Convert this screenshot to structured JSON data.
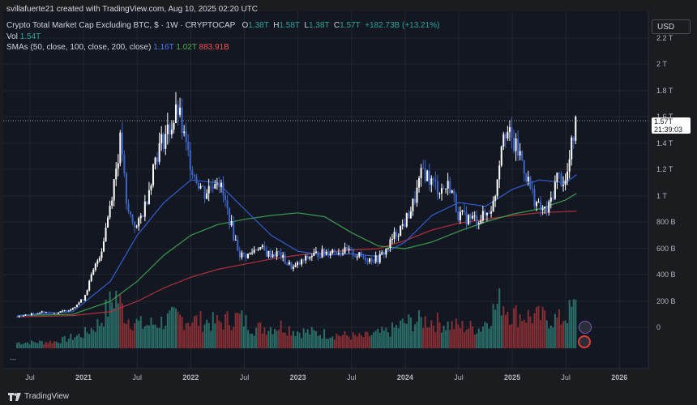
{
  "header": {
    "credit": "svillafuerte21 created with TradingView.com, Aug 10, 2025 02:20 UTC",
    "symbol": "Crypto Total Market Cap Excluding BTC, $ · 1W · CRYPTOCAP",
    "ohlc": {
      "o_label": "O",
      "open": "1.38T",
      "h_label": "H",
      "high": "1.58T",
      "l_label": "L",
      "low": "1.38T",
      "c_label": "C",
      "close": "1.57T",
      "change": "+182.73B (+13.21%)"
    },
    "vol_label": "Vol",
    "vol_value": "1.54T",
    "sma_label": "SMAs (50, close, 100, close, 200, close)",
    "sma50_value": "1.16T",
    "sma100_value": "1.02T",
    "sma200_value": "883.91B"
  },
  "axis": {
    "currency": "USD"
  },
  "price_tag": {
    "price": "1.57T",
    "countdown": "21:39:03"
  },
  "branding": {
    "logo_text": "TradingView"
  },
  "more_label": "...",
  "colors": {
    "background": "#1b1c20",
    "candle_up": "#ffffff",
    "candle_down": "#3d63c4",
    "sma50": "#2f5fd0",
    "sma100": "#3a9b4b",
    "sma200": "#b2303a",
    "vol_up": "#2f7d74",
    "vol_down": "#9a3236"
  },
  "chart_data": {
    "type": "candlestick",
    "interval": "1W",
    "y_scale": "log",
    "ylim": [
      "0",
      "2.3T"
    ],
    "y_ticks": [
      {
        "v": 2200000000000.0,
        "label": "2.2 T"
      },
      {
        "v": 2000000000000.0,
        "label": "2 T"
      },
      {
        "v": 1800000000000.0,
        "label": "1.8 T"
      },
      {
        "v": 1600000000000.0,
        "label": "1.6 T"
      },
      {
        "v": 1400000000000.0,
        "label": "1.4 T"
      },
      {
        "v": 1200000000000.0,
        "label": "1.2 T"
      },
      {
        "v": 1000000000000.0,
        "label": "1 T"
      },
      {
        "v": 800000000000.0,
        "label": "800 B"
      },
      {
        "v": 600000000000.0,
        "label": "600 B"
      },
      {
        "v": 400000000000.0,
        "label": "400 B"
      },
      {
        "v": 200000000000.0,
        "label": "200 B"
      },
      {
        "v": 0,
        "label": "0"
      }
    ],
    "x_ticks": [
      {
        "t": 2020.5,
        "label": "Jul"
      },
      {
        "t": 2021.0,
        "label": "2021"
      },
      {
        "t": 2021.5,
        "label": "Jul"
      },
      {
        "t": 2022.0,
        "label": "2022"
      },
      {
        "t": 2022.5,
        "label": "Jul"
      },
      {
        "t": 2023.0,
        "label": "2023"
      },
      {
        "t": 2023.5,
        "label": "Jul"
      },
      {
        "t": 2024.0,
        "label": "2024"
      },
      {
        "t": 2024.5,
        "label": "Jul"
      },
      {
        "t": 2025.0,
        "label": "2025"
      },
      {
        "t": 2025.5,
        "label": "Jul"
      },
      {
        "t": 2026.0,
        "label": "2026"
      }
    ],
    "last_price": 1570000000000.0,
    "price_path": [
      [
        2020.38,
        80000000000.0
      ],
      [
        2020.5,
        100000000000.0
      ],
      [
        2020.62,
        120000000000.0
      ],
      [
        2020.75,
        110000000000.0
      ],
      [
        2020.88,
        140000000000.0
      ],
      [
        2021.0,
        220000000000.0
      ],
      [
        2021.08,
        400000000000.0
      ],
      [
        2021.17,
        600000000000.0
      ],
      [
        2021.25,
        950000000000.0
      ],
      [
        2021.35,
        1450000000000.0
      ],
      [
        2021.4,
        900000000000.0
      ],
      [
        2021.5,
        750000000000.0
      ],
      [
        2021.58,
        950000000000.0
      ],
      [
        2021.67,
        1300000000000.0
      ],
      [
        2021.75,
        1450000000000.0
      ],
      [
        2021.83,
        1550000000000.0
      ],
      [
        2021.88,
        1650000000000.0
      ],
      [
        2021.96,
        1350000000000.0
      ],
      [
        2022.04,
        1150000000000.0
      ],
      [
        2022.13,
        1020000000000.0
      ],
      [
        2022.25,
        1150000000000.0
      ],
      [
        2022.33,
        920000000000.0
      ],
      [
        2022.4,
        700000000000.0
      ],
      [
        2022.46,
        550000000000.0
      ],
      [
        2022.54,
        550000000000.0
      ],
      [
        2022.63,
        620000000000.0
      ],
      [
        2022.71,
        560000000000.0
      ],
      [
        2022.83,
        560000000000.0
      ],
      [
        2022.88,
        500000000000.0
      ],
      [
        2022.96,
        450000000000.0
      ],
      [
        2023.04,
        500000000000.0
      ],
      [
        2023.13,
        550000000000.0
      ],
      [
        2023.25,
        570000000000.0
      ],
      [
        2023.33,
        590000000000.0
      ],
      [
        2023.42,
        580000000000.0
      ],
      [
        2023.5,
        570000000000.0
      ],
      [
        2023.58,
        540000000000.0
      ],
      [
        2023.67,
        520000000000.0
      ],
      [
        2023.75,
        520000000000.0
      ],
      [
        2023.83,
        600000000000.0
      ],
      [
        2023.92,
        720000000000.0
      ],
      [
        2024.0,
        800000000000.0
      ],
      [
        2024.08,
        950000000000.0
      ],
      [
        2024.17,
        1200000000000.0
      ],
      [
        2024.25,
        1100000000000.0
      ],
      [
        2024.33,
        1050000000000.0
      ],
      [
        2024.42,
        1080000000000.0
      ],
      [
        2024.5,
        850000000000.0
      ],
      [
        2024.58,
        830000000000.0
      ],
      [
        2024.67,
        820000000000.0
      ],
      [
        2024.75,
        850000000000.0
      ],
      [
        2024.83,
        950000000000.0
      ],
      [
        2024.92,
        1550000000000.0
      ],
      [
        2025.0,
        1400000000000.0
      ],
      [
        2025.08,
        1300000000000.0
      ],
      [
        2025.17,
        1050000000000.0
      ],
      [
        2025.25,
        900000000000.0
      ],
      [
        2025.33,
        880000000000.0
      ],
      [
        2025.42,
        1150000000000.0
      ],
      [
        2025.5,
        1100000000000.0
      ],
      [
        2025.54,
        1300000000000.0
      ],
      [
        2025.58,
        1500000000000.0
      ],
      [
        2025.6,
        1570000000000.0
      ]
    ],
    "sma50_path": [
      [
        2020.38,
        90000000000.0
      ],
      [
        2020.9,
        120000000000.0
      ],
      [
        2021.25,
        350000000000.0
      ],
      [
        2021.5,
        700000000000.0
      ],
      [
        2021.75,
        950000000000.0
      ],
      [
        2022.0,
        1120000000000.0
      ],
      [
        2022.25,
        1100000000000.0
      ],
      [
        2022.5,
        900000000000.0
      ],
      [
        2022.75,
        700000000000.0
      ],
      [
        2023.0,
        580000000000.0
      ],
      [
        2023.25,
        550000000000.0
      ],
      [
        2023.5,
        560000000000.0
      ],
      [
        2023.75,
        540000000000.0
      ],
      [
        2024.0,
        650000000000.0
      ],
      [
        2024.25,
        850000000000.0
      ],
      [
        2024.5,
        950000000000.0
      ],
      [
        2024.75,
        920000000000.0
      ],
      [
        2025.0,
        1050000000000.0
      ],
      [
        2025.25,
        1120000000000.0
      ],
      [
        2025.5,
        1100000000000.0
      ],
      [
        2025.6,
        1160000000000.0
      ]
    ],
    "sma100_path": [
      [
        2020.38,
        90000000000.0
      ],
      [
        2020.9,
        100000000000.0
      ],
      [
        2021.25,
        200000000000.0
      ],
      [
        2021.5,
        350000000000.0
      ],
      [
        2021.75,
        550000000000.0
      ],
      [
        2022.0,
        700000000000.0
      ],
      [
        2022.25,
        780000000000.0
      ],
      [
        2022.5,
        820000000000.0
      ],
      [
        2022.75,
        850000000000.0
      ],
      [
        2023.0,
        870000000000.0
      ],
      [
        2023.25,
        840000000000.0
      ],
      [
        2023.5,
        720000000000.0
      ],
      [
        2023.75,
        620000000000.0
      ],
      [
        2024.0,
        600000000000.0
      ],
      [
        2024.25,
        650000000000.0
      ],
      [
        2024.5,
        730000000000.0
      ],
      [
        2024.75,
        800000000000.0
      ],
      [
        2025.0,
        860000000000.0
      ],
      [
        2025.25,
        900000000000.0
      ],
      [
        2025.5,
        970000000000.0
      ],
      [
        2025.6,
        1020000000000.0
      ]
    ],
    "sma200_path": [
      [
        2020.38,
        80000000000.0
      ],
      [
        2020.9,
        90000000000.0
      ],
      [
        2021.25,
        120000000000.0
      ],
      [
        2021.5,
        200000000000.0
      ],
      [
        2021.75,
        300000000000.0
      ],
      [
        2022.0,
        380000000000.0
      ],
      [
        2022.25,
        440000000000.0
      ],
      [
        2022.5,
        480000000000.0
      ],
      [
        2022.75,
        520000000000.0
      ],
      [
        2023.0,
        550000000000.0
      ],
      [
        2023.25,
        570000000000.0
      ],
      [
        2023.5,
        590000000000.0
      ],
      [
        2023.75,
        600000000000.0
      ],
      [
        2024.0,
        660000000000.0
      ],
      [
        2024.25,
        740000000000.0
      ],
      [
        2024.5,
        790000000000.0
      ],
      [
        2024.75,
        820000000000.0
      ],
      [
        2025.0,
        850000000000.0
      ],
      [
        2025.25,
        870000000000.0
      ],
      [
        2025.5,
        880000000000.0
      ],
      [
        2025.6,
        884000000000.0
      ]
    ],
    "volume_profile": [
      [
        2020.38,
        0.1
      ],
      [
        2020.75,
        0.12
      ],
      [
        2021.0,
        0.25
      ],
      [
        2021.15,
        0.45
      ],
      [
        2021.3,
        0.95
      ],
      [
        2021.4,
        0.55
      ],
      [
        2021.55,
        0.4
      ],
      [
        2021.7,
        0.45
      ],
      [
        2021.85,
        0.55
      ],
      [
        2022.0,
        0.5
      ],
      [
        2022.25,
        0.45
      ],
      [
        2022.45,
        0.55
      ],
      [
        2022.6,
        0.35
      ],
      [
        2022.85,
        0.4
      ],
      [
        2023.0,
        0.3
      ],
      [
        2023.3,
        0.25
      ],
      [
        2023.6,
        0.2
      ],
      [
        2023.85,
        0.3
      ],
      [
        2024.0,
        0.45
      ],
      [
        2024.2,
        0.5
      ],
      [
        2024.45,
        0.4
      ],
      [
        2024.7,
        0.35
      ],
      [
        2024.9,
        0.85
      ],
      [
        2025.0,
        0.6
      ],
      [
        2025.25,
        0.55
      ],
      [
        2025.45,
        0.5
      ],
      [
        2025.6,
        0.75
      ]
    ]
  }
}
